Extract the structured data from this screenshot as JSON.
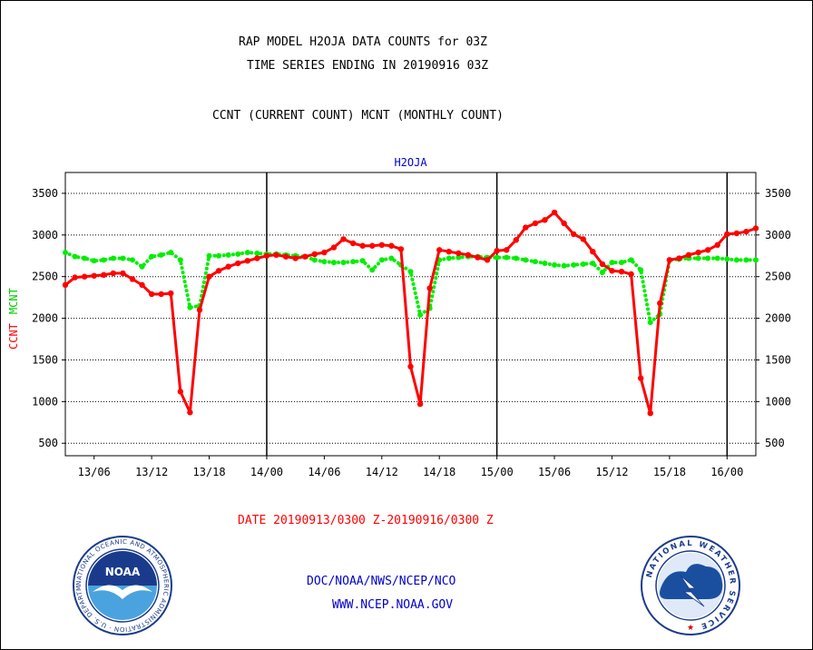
{
  "header": {
    "title_line1": "RAP MODEL H2OJA DATA COUNTS for 03Z",
    "title_line2": "TIME SERIES ENDING IN 20190916 03Z",
    "subtitle": "CCNT (CURRENT COUNT) MCNT (MONTHLY COUNT)"
  },
  "footer": {
    "date_range": "DATE 20190913/0300 Z-20190916/0300 Z",
    "org": "DOC/NOAA/NWS/NCEP/NCO",
    "url": "WWW.NCEP.NOAA.GOV"
  },
  "logos": {
    "left": "NOAA",
    "right_ring": "NATIONAL WEATHER SERVICE"
  },
  "colors": {
    "ccnt": "#ff0000",
    "mcnt": "#00ee00",
    "title": "#000000",
    "label_blue": "#0000cc",
    "date_red": "#ff0000"
  },
  "chart_data": {
    "type": "line",
    "title": "H2OJA",
    "ylabel_ccnt": "CCNT",
    "ylabel_mcnt": "MCNT",
    "ylim": [
      350,
      3750
    ],
    "yticks": [
      500,
      1000,
      1500,
      2000,
      2500,
      3000,
      3500
    ],
    "xlim_hours": [
      0,
      72
    ],
    "xtick_labels": [
      "13/06",
      "13/12",
      "13/18",
      "14/00",
      "14/06",
      "14/12",
      "14/18",
      "15/00",
      "15/06",
      "15/12",
      "15/18",
      "16/00"
    ],
    "xtick_hours": [
      3,
      9,
      15,
      21,
      27,
      33,
      39,
      45,
      51,
      57,
      63,
      69
    ],
    "day_boundaries_hours": [
      21,
      45,
      69
    ],
    "grid": true,
    "series": [
      {
        "name": "CCNT",
        "style": "solid",
        "color": "#ff0000",
        "values": [
          2400,
          2490,
          2500,
          2510,
          2520,
          2540,
          2540,
          2470,
          2400,
          2290,
          2290,
          2300,
          1120,
          870,
          2100,
          2500,
          2570,
          2620,
          2660,
          2690,
          2720,
          2750,
          2760,
          2740,
          2720,
          2740,
          2770,
          2790,
          2850,
          2950,
          2900,
          2870,
          2870,
          2880,
          2870,
          2830,
          1420,
          970,
          2360,
          2820,
          2800,
          2780,
          2760,
          2730,
          2700,
          2810,
          2820,
          2940,
          3090,
          3140,
          3180,
          3270,
          3140,
          3010,
          2950,
          2800,
          2650,
          2570,
          2560,
          2530,
          1280,
          860,
          2180,
          2700,
          2720,
          2760,
          2790,
          2820,
          2880,
          3010,
          3020,
          3040,
          3080
        ]
      },
      {
        "name": "MCNT",
        "style": "dotted",
        "color": "#00ee00",
        "values": [
          2790,
          2740,
          2720,
          2690,
          2700,
          2720,
          2720,
          2700,
          2620,
          2740,
          2760,
          2790,
          2700,
          2130,
          2150,
          2750,
          2750,
          2760,
          2770,
          2790,
          2780,
          2770,
          2770,
          2760,
          2750,
          2740,
          2700,
          2680,
          2670,
          2670,
          2680,
          2690,
          2580,
          2700,
          2720,
          2640,
          2560,
          2040,
          2120,
          2700,
          2720,
          2730,
          2740,
          2740,
          2730,
          2730,
          2730,
          2720,
          2700,
          2680,
          2660,
          2640,
          2630,
          2640,
          2650,
          2660,
          2550,
          2670,
          2670,
          2700,
          2580,
          1950,
          2050,
          2700,
          2710,
          2720,
          2720,
          2720,
          2720,
          2710,
          2700,
          2700,
          2700
        ]
      }
    ]
  }
}
